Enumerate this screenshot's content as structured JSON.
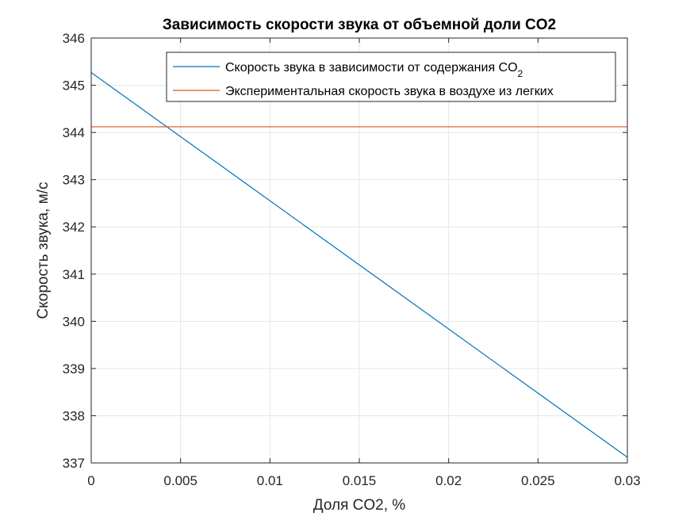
{
  "chart_data": {
    "type": "line",
    "title": "Зависимость скорости звука от объемной доли CO2",
    "xlabel": "Доля CO2, %",
    "ylabel": "Скорость звука, м/с",
    "xlim": [
      0,
      0.03
    ],
    "ylim": [
      337,
      346
    ],
    "xticks": [
      0,
      0.005,
      0.01,
      0.015,
      0.02,
      0.025,
      0.03
    ],
    "xtick_labels": [
      "0",
      "0.005",
      "0.01",
      "0.015",
      "0.02",
      "0.025",
      "0.03"
    ],
    "yticks": [
      337,
      338,
      339,
      340,
      341,
      342,
      343,
      344,
      345,
      346
    ],
    "ytick_labels": [
      "337",
      "338",
      "339",
      "340",
      "341",
      "342",
      "343",
      "344",
      "345",
      "346"
    ],
    "grid": true,
    "legend_position": "top-right",
    "series": [
      {
        "name": "Скорость звука в зависимости от содержания CO",
        "name_subscript": "2",
        "color": "#0072BD",
        "x": [
          0,
          0.03
        ],
        "y": [
          345.27,
          337.12
        ]
      },
      {
        "name": "Экспериментальная скорость звука в воздухе из легких",
        "name_subscript": "",
        "color": "#D95319",
        "x": [
          0,
          0.03
        ],
        "y": [
          344.12,
          344.12
        ]
      }
    ]
  }
}
